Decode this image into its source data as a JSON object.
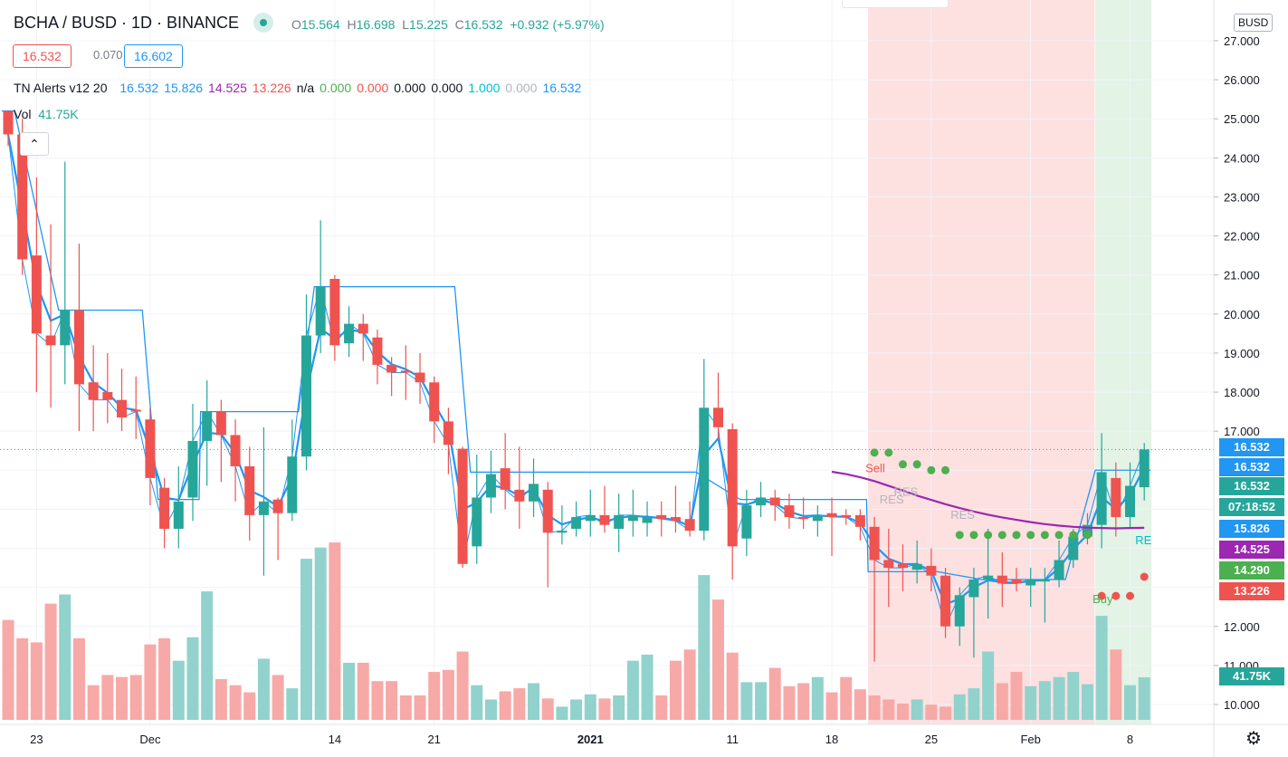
{
  "header": {
    "title": "BCHA / BUSD · 1D · BINANCE",
    "ohlc": {
      "o_label": "O",
      "o": "15.564",
      "h_label": "H",
      "h": "16.698",
      "l_label": "L",
      "l": "15.225",
      "c_label": "C",
      "c": "16.532",
      "change": "+0.932 (+5.97%)"
    },
    "bid": "16.532",
    "spread": "0.070",
    "ask": "16.602",
    "indicator": {
      "name": "TN Alerts v12 20",
      "values": [
        {
          "v": "16.532",
          "color": "#2196f3"
        },
        {
          "v": "15.826",
          "color": "#2196f3"
        },
        {
          "v": "14.525",
          "color": "#9c27b0"
        },
        {
          "v": "13.226",
          "color": "#ef5350"
        },
        {
          "v": "n/a",
          "color": "#131722"
        },
        {
          "v": "0.000",
          "color": "#4caf50"
        },
        {
          "v": "0.000",
          "color": "#ef5350"
        },
        {
          "v": "0.000",
          "color": "#131722"
        },
        {
          "v": "0.000",
          "color": "#131722"
        },
        {
          "v": "1.000",
          "color": "#00bcd4"
        },
        {
          "v": "0.000",
          "color": "#b2b5be"
        },
        {
          "v": "16.532",
          "color": "#2196f3"
        }
      ]
    },
    "volume": {
      "label": "Vol",
      "value": "41.75K"
    },
    "collapse_icon": "chevron-up-icon"
  },
  "currency_button": "BUSD",
  "price_labels": [
    {
      "text": "16.532",
      "color": "#2196f3",
      "price": 16.532
    },
    {
      "text": "16.532",
      "color": "#2196f3",
      "price": 16.532
    },
    {
      "text": "16.532",
      "color": "#26a69a",
      "price": 16.532
    },
    {
      "text": "07:18:52",
      "color": "#26a69a",
      "price": 16.532
    },
    {
      "text": "15.826",
      "color": "#2196f3",
      "price": 15.826
    },
    {
      "text": "14.525",
      "color": "#9c27b0",
      "price": 14.525
    },
    {
      "text": "14.290",
      "color": "#4caf50",
      "price": 14.29
    },
    {
      "text": "13.226",
      "color": "#ef5350",
      "price": 13.226
    },
    {
      "text": "41.75K",
      "color": "#26a69a",
      "price": null
    }
  ],
  "colors": {
    "up": "#26a69a",
    "down": "#ef5350",
    "up_vol": "#92d2cc",
    "down_vol": "#f7a9a7",
    "ma": "#2196f3",
    "trend": "#9c27b0",
    "sell_zone": "#fde0e0",
    "buy_zone": "#e3f3e5"
  },
  "chart_data": {
    "type": "candlestick",
    "title": "BCHA / BUSD · 1D · BINANCE",
    "ylim": [
      9.6,
      27.3
    ],
    "y_ticks": [
      "27.000",
      "26.000",
      "25.000",
      "24.000",
      "23.000",
      "22.000",
      "21.000",
      "20.000",
      "19.000",
      "18.000",
      "17.000",
      "12.000",
      "11.000",
      "10.000"
    ],
    "x_ticks": [
      {
        "label": "23",
        "index": 2
      },
      {
        "label": "Dec",
        "index": 10
      },
      {
        "label": "14",
        "index": 23
      },
      {
        "label": "21",
        "index": 30
      },
      {
        "label": "2021",
        "index": 41
      },
      {
        "label": "11",
        "index": 51
      },
      {
        "label": "18",
        "index": 58
      },
      {
        "label": "25",
        "index": 65
      },
      {
        "label": "Feb",
        "index": 72
      },
      {
        "label": "8",
        "index": 79
      }
    ],
    "grid": true,
    "candles_ohlcv_k": [
      [
        25.2,
        25.2,
        24.3,
        24.6,
        98
      ],
      [
        24.6,
        25.0,
        21.0,
        21.4,
        80
      ],
      [
        21.5,
        23.5,
        18.0,
        19.5,
        76
      ],
      [
        19.45,
        22.3,
        17.6,
        19.2,
        114
      ],
      [
        19.2,
        23.9,
        18.2,
        20.1,
        123
      ],
      [
        20.1,
        21.8,
        17.0,
        18.2,
        80
      ],
      [
        18.25,
        19.2,
        17.0,
        17.8,
        34
      ],
      [
        18.0,
        19.0,
        17.2,
        17.8,
        44
      ],
      [
        17.8,
        18.6,
        17.0,
        17.35,
        42
      ],
      [
        17.55,
        18.4,
        16.8,
        17.5,
        44
      ],
      [
        17.3,
        17.6,
        15.1,
        15.8,
        74
      ],
      [
        15.55,
        15.8,
        14.0,
        14.5,
        80
      ],
      [
        14.5,
        16.1,
        14.0,
        15.2,
        58
      ],
      [
        15.3,
        17.7,
        14.7,
        16.75,
        81
      ],
      [
        16.75,
        18.3,
        15.6,
        17.5,
        126
      ],
      [
        17.5,
        17.8,
        15.7,
        16.9,
        40
      ],
      [
        16.9,
        17.3,
        15.2,
        16.1,
        34
      ],
      [
        16.1,
        16.6,
        14.2,
        14.85,
        27
      ],
      [
        14.85,
        17.1,
        13.3,
        15.2,
        60
      ],
      [
        15.25,
        15.3,
        13.7,
        14.9,
        44
      ],
      [
        14.9,
        17.3,
        14.7,
        16.35,
        31
      ],
      [
        16.35,
        20.5,
        16.0,
        19.45,
        158
      ],
      [
        19.45,
        22.4,
        19.0,
        20.7,
        169
      ],
      [
        20.9,
        21.0,
        18.8,
        19.2,
        174
      ],
      [
        19.25,
        20.2,
        18.9,
        19.75,
        56
      ],
      [
        19.75,
        20.0,
        18.8,
        19.5,
        56
      ],
      [
        19.4,
        19.6,
        18.2,
        18.7,
        38
      ],
      [
        18.7,
        18.9,
        17.9,
        18.5,
        38
      ],
      [
        18.55,
        19.2,
        17.8,
        18.5,
        24
      ],
      [
        18.5,
        19.0,
        17.7,
        18.25,
        24
      ],
      [
        18.25,
        18.4,
        16.7,
        17.25,
        47
      ],
      [
        17.25,
        17.6,
        15.9,
        16.65,
        49
      ],
      [
        16.55,
        16.6,
        13.5,
        13.6,
        67
      ],
      [
        14.05,
        16.4,
        13.6,
        15.3,
        34
      ],
      [
        15.3,
        16.5,
        14.9,
        15.9,
        20
      ],
      [
        16.05,
        16.95,
        15.0,
        15.5,
        28
      ],
      [
        15.5,
        16.6,
        14.5,
        15.2,
        31
      ],
      [
        15.2,
        16.3,
        14.8,
        15.65,
        36
      ],
      [
        15.5,
        15.7,
        13.0,
        14.4,
        21
      ],
      [
        14.4,
        15.1,
        14.1,
        14.45,
        13
      ],
      [
        14.5,
        15.2,
        14.3,
        14.8,
        20
      ],
      [
        14.7,
        15.5,
        14.3,
        14.85,
        25
      ],
      [
        14.85,
        15.6,
        14.4,
        14.6,
        21
      ],
      [
        14.5,
        15.4,
        13.9,
        14.85,
        24
      ],
      [
        14.7,
        15.5,
        14.3,
        14.85,
        58
      ],
      [
        14.65,
        15.2,
        14.3,
        14.8,
        64
      ],
      [
        14.85,
        15.2,
        14.3,
        14.75,
        24
      ],
      [
        14.8,
        15.6,
        14.4,
        14.7,
        58
      ],
      [
        14.75,
        15.2,
        14.3,
        14.45,
        69
      ],
      [
        14.45,
        18.85,
        14.2,
        17.6,
        142
      ],
      [
        17.6,
        18.5,
        16.8,
        17.1,
        118
      ],
      [
        17.05,
        17.2,
        13.2,
        14.05,
        66
      ],
      [
        14.25,
        15.5,
        13.8,
        15.1,
        37
      ],
      [
        15.1,
        15.7,
        14.8,
        15.3,
        37
      ],
      [
        15.3,
        15.5,
        14.7,
        15.1,
        51
      ],
      [
        15.1,
        15.4,
        14.5,
        14.8,
        33
      ],
      [
        14.8,
        15.3,
        14.5,
        14.75,
        36
      ],
      [
        14.7,
        15.1,
        14.3,
        14.85,
        42
      ],
      [
        14.9,
        15.3,
        13.8,
        14.8,
        27
      ],
      [
        14.85,
        15.0,
        14.6,
        14.8,
        42
      ],
      [
        14.85,
        15.0,
        14.2,
        14.55,
        30
      ],
      [
        14.55,
        14.8,
        11.1,
        13.7,
        24
      ],
      [
        13.7,
        14.5,
        12.5,
        13.5,
        20
      ],
      [
        13.6,
        14.1,
        12.9,
        13.5,
        16
      ],
      [
        13.45,
        14.2,
        13.1,
        13.6,
        20
      ],
      [
        13.55,
        14.0,
        12.9,
        13.3,
        15
      ],
      [
        13.3,
        13.5,
        11.7,
        12.0,
        13
      ],
      [
        12.0,
        13.0,
        11.5,
        12.8,
        25
      ],
      [
        12.75,
        13.5,
        11.2,
        13.2,
        31
      ],
      [
        13.2,
        14.5,
        12.2,
        13.3,
        67
      ],
      [
        13.3,
        13.9,
        12.5,
        13.1,
        36
      ],
      [
        13.2,
        13.5,
        12.9,
        13.1,
        47
      ],
      [
        13.05,
        13.5,
        12.5,
        13.2,
        33
      ],
      [
        13.15,
        13.5,
        12.1,
        13.2,
        38
      ],
      [
        13.2,
        14.2,
        13.0,
        13.7,
        42
      ],
      [
        13.7,
        14.5,
        13.5,
        14.3,
        47
      ],
      [
        14.3,
        14.9,
        14.1,
        14.6,
        35
      ],
      [
        14.6,
        16.95,
        14.0,
        15.95,
        102
      ],
      [
        15.8,
        16.2,
        14.3,
        14.8,
        69
      ],
      [
        14.8,
        16.2,
        14.5,
        15.6,
        34
      ],
      [
        15.564,
        16.698,
        15.225,
        16.532,
        41.75
      ]
    ],
    "resistance_steps": [
      [
        0,
        0,
        25.2
      ],
      [
        4,
        9,
        20.1
      ],
      [
        11,
        13,
        15.25
      ],
      [
        14,
        20,
        17.5
      ],
      [
        22,
        31,
        20.7
      ],
      [
        33,
        48,
        15.95
      ],
      [
        52,
        60,
        15.25
      ],
      [
        61,
        65,
        13.4
      ],
      [
        69,
        74,
        13.2
      ],
      [
        77,
        80,
        16.0
      ]
    ],
    "trend_line": {
      "start_index": 58,
      "values": [
        15.96,
        15.9,
        15.82,
        15.72,
        15.6,
        15.48,
        15.35,
        15.24,
        15.13,
        15.03,
        14.94,
        14.86,
        14.79,
        14.73,
        14.67,
        14.62,
        14.58,
        14.55,
        14.53,
        14.52,
        14.51,
        14.52,
        14.525
      ]
    },
    "zones": [
      {
        "type": "sell",
        "from_index": 61,
        "to_index": 76
      },
      {
        "type": "buy",
        "from_index": 77,
        "to_index": 80
      }
    ],
    "green_dots": [
      [
        61,
        16.45
      ],
      [
        62,
        16.45
      ],
      [
        63,
        16.15
      ],
      [
        64,
        16.15
      ],
      [
        65,
        16.0
      ],
      [
        66,
        16.0
      ],
      [
        67,
        14.34
      ],
      [
        68,
        14.34
      ],
      [
        69,
        14.34
      ],
      [
        70,
        14.34
      ],
      [
        71,
        14.34
      ],
      [
        72,
        14.34
      ],
      [
        73,
        14.34
      ],
      [
        74,
        14.34
      ],
      [
        75,
        14.34
      ],
      [
        76,
        14.34
      ]
    ],
    "red_dots": [
      [
        77,
        12.78
      ],
      [
        78,
        12.78
      ],
      [
        79,
        12.78
      ],
      [
        80,
        13.27
      ]
    ],
    "annotations": [
      {
        "text": "Sell",
        "index": 61,
        "price": 15.95,
        "color": "#ef5350"
      },
      {
        "text": "RES",
        "index": 62,
        "price": 15.15,
        "color": "#b2b5be"
      },
      {
        "text": "RES",
        "index": 63,
        "price": 15.35,
        "color": "#b2b5be"
      },
      {
        "text": "RES",
        "index": 67,
        "price": 14.75,
        "color": "#b2b5be"
      },
      {
        "text": "Buy",
        "index": 77,
        "price": 12.6,
        "color": "#4caf50"
      },
      {
        "text": "RE",
        "index": 80,
        "price": 14.1,
        "color": "#00bcd4"
      }
    ],
    "last_price": 16.532
  }
}
